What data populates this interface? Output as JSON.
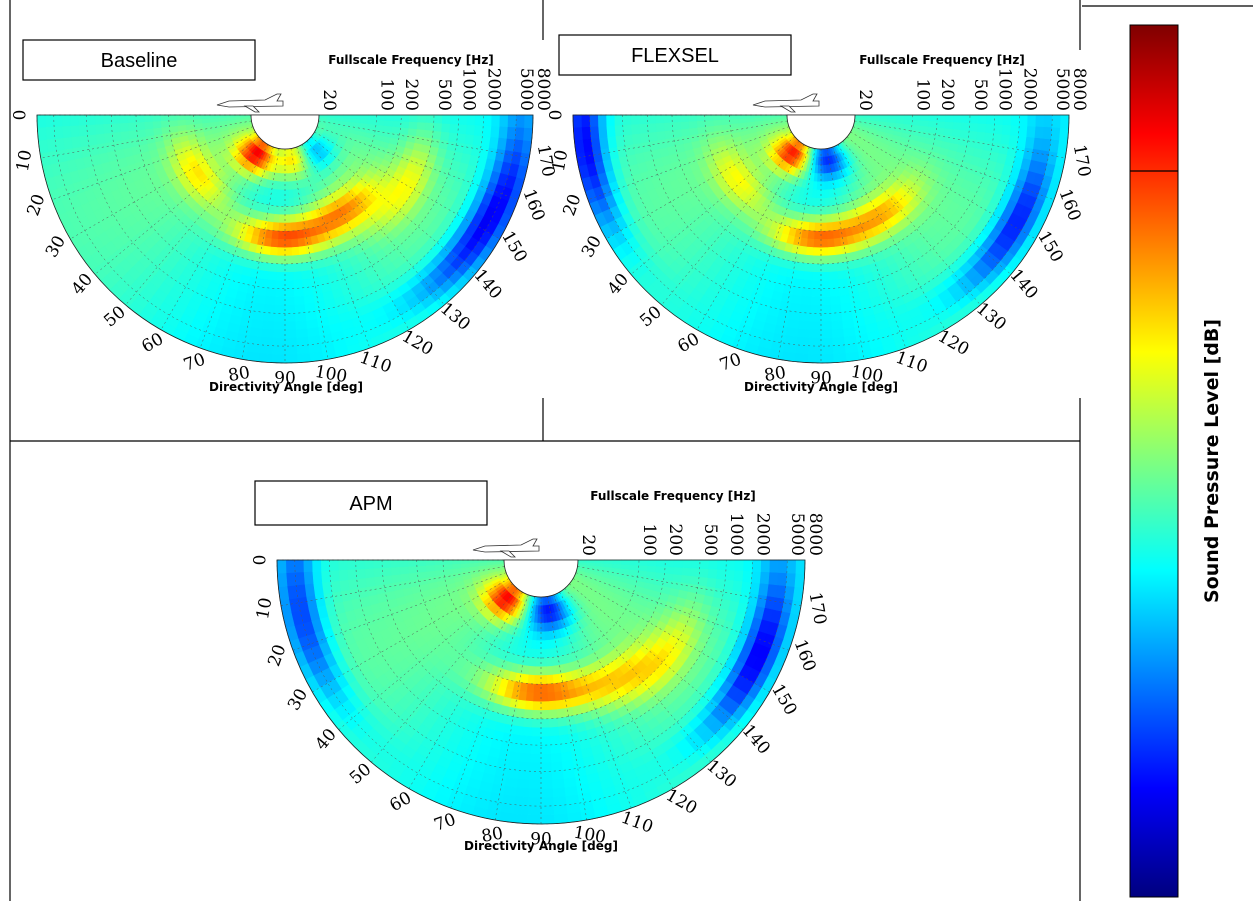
{
  "colors": {
    "frame": "#000000",
    "label_box_border": "#000000",
    "background": "#ffffff",
    "colorbar_stops": [
      "#00007f",
      "#0000ff",
      "#007fff",
      "#00ffff",
      "#7fff7f",
      "#ffff00",
      "#ff7f00",
      "#ff0000",
      "#7f0000"
    ]
  },
  "colorbar": {
    "label": "Sound Pressure Level [dB]",
    "orientation": "vertical",
    "has_divider_line": true
  },
  "icons": [
    "aircraft-icon"
  ],
  "chart_data": [
    {
      "type": "heatmap",
      "projection": "polar-semicircle",
      "panel_label": "Baseline",
      "frequency_label": "Fullscale Frequency [Hz]",
      "frequency_ticks": [
        "20",
        "100",
        "200",
        "500",
        "1000",
        "2000",
        "5000",
        "8000"
      ],
      "angle_label": "Directivity Angle [deg]",
      "angle_ticks": [
        "0",
        "10",
        "20",
        "30",
        "40",
        "50",
        "60",
        "70",
        "80",
        "90",
        "100",
        "110",
        "120",
        "130",
        "140",
        "150",
        "160",
        "170"
      ],
      "angle_range": [
        0,
        180
      ],
      "grid": true,
      "radial_scale": "log",
      "hotspots": [
        {
          "angle_deg": 55,
          "frequency_hz": 30,
          "level": 0.88
        },
        {
          "angle_deg": 88,
          "frequency_hz": 250,
          "level": 0.85
        },
        {
          "angle_deg": 100,
          "frequency_hz": 28,
          "level": 0.7
        },
        {
          "angle_deg": 120,
          "frequency_hz": 180,
          "level": 0.72
        },
        {
          "angle_deg": 150,
          "frequency_hz": 400,
          "level": 0.6
        },
        {
          "angle_deg": 35,
          "frequency_hz": 150,
          "level": 0.62
        }
      ],
      "coldspots": [
        {
          "angle_deg": 145,
          "frequency_hz": 4000,
          "level": 0.22
        },
        {
          "angle_deg": 160,
          "frequency_hz": 6000,
          "level": 0.25
        },
        {
          "angle_deg": 130,
          "frequency_hz": 30,
          "level": 0.25
        }
      ]
    },
    {
      "type": "heatmap",
      "projection": "polar-semicircle",
      "panel_label": "FLEXSEL",
      "frequency_label": "Fullscale Frequency [Hz]",
      "frequency_ticks": [
        "20",
        "100",
        "200",
        "500",
        "1000",
        "2000",
        "5000",
        "8000"
      ],
      "angle_label": "Directivity Angle [deg]",
      "angle_ticks": [
        "0",
        "10",
        "20",
        "30",
        "40",
        "50",
        "60",
        "70",
        "80",
        "90",
        "100",
        "110",
        "120",
        "130",
        "140",
        "150",
        "160",
        "170"
      ],
      "angle_range": [
        0,
        180
      ],
      "grid": true,
      "radial_scale": "log",
      "hotspots": [
        {
          "angle_deg": 55,
          "frequency_hz": 30,
          "level": 0.85
        },
        {
          "angle_deg": 88,
          "frequency_hz": 250,
          "level": 0.82
        },
        {
          "angle_deg": 120,
          "frequency_hz": 200,
          "level": 0.68
        },
        {
          "angle_deg": 40,
          "frequency_hz": 150,
          "level": 0.6
        }
      ],
      "coldspots": [
        {
          "angle_deg": 10,
          "frequency_hz": 6000,
          "level": 0.15
        },
        {
          "angle_deg": 150,
          "frequency_hz": 4000,
          "level": 0.15
        },
        {
          "angle_deg": 100,
          "frequency_hz": 28,
          "level": 0.2
        }
      ]
    },
    {
      "type": "heatmap",
      "projection": "polar-semicircle",
      "panel_label": "APM",
      "frequency_label": "Fullscale Frequency [Hz]",
      "frequency_ticks": [
        "20",
        "100",
        "200",
        "500",
        "1000",
        "2000",
        "5000",
        "8000"
      ],
      "angle_label": "Directivity Angle [deg]",
      "angle_ticks": [
        "0",
        "10",
        "20",
        "30",
        "40",
        "50",
        "60",
        "70",
        "80",
        "90",
        "100",
        "110",
        "120",
        "130",
        "140",
        "150",
        "160",
        "170"
      ],
      "angle_range": [
        0,
        180
      ],
      "grid": true,
      "radial_scale": "log",
      "hotspots": [
        {
          "angle_deg": 50,
          "frequency_hz": 30,
          "level": 0.86
        },
        {
          "angle_deg": 88,
          "frequency_hz": 250,
          "level": 0.83
        },
        {
          "angle_deg": 120,
          "frequency_hz": 300,
          "level": 0.62
        },
        {
          "angle_deg": 140,
          "frequency_hz": 500,
          "level": 0.6
        }
      ],
      "coldspots": [
        {
          "angle_deg": 155,
          "frequency_hz": 4000,
          "level": 0.12
        },
        {
          "angle_deg": 15,
          "frequency_hz": 5000,
          "level": 0.2
        },
        {
          "angle_deg": 100,
          "frequency_hz": 30,
          "level": 0.18
        }
      ]
    }
  ]
}
